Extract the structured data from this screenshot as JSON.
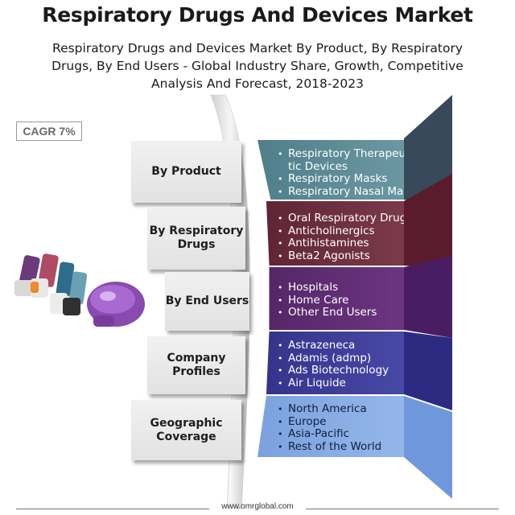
{
  "header": {
    "title": "Respiratory Drugs And Devices Market",
    "subtitle_lines": [
      "Respiratory Drugs and Devices Market By Product, By Respiratory",
      "Drugs, By End Users - Global Industry Share, Growth, Competitive",
      "Analysis And Forecast, 2018-2023"
    ]
  },
  "cagr_badge": "CAGR 7%",
  "segments": [
    {
      "label_lines": [
        "By Product"
      ],
      "color": "#5b8a96",
      "items": [
        "Respiratory Therapeu-",
        "tic Devices",
        "Respiratory Masks",
        "Respiratory Nasal Masks"
      ]
    },
    {
      "label_lines": [
        "By Respiratory",
        "Drugs"
      ],
      "color": "#6e2f3e",
      "items": [
        "Oral Respiratory Drugs",
        "Anticholinergics",
        "Antihistamines",
        "Beta2 Agonists"
      ]
    },
    {
      "label_lines": [
        "By End Users"
      ],
      "color": "#5d2c72",
      "items": [
        "Hospitals",
        "Home Care",
        "Other End Users"
      ]
    },
    {
      "label_lines": [
        "Company",
        "Profiles"
      ],
      "color": "#3b3a93",
      "items": [
        "Astrazeneca",
        "Adamis (admp)",
        "Ads Biotechnology",
        "Air Liquide"
      ]
    },
    {
      "label_lines": [
        "Geographic",
        "Coverage"
      ],
      "color": "#7ea7e2",
      "items": [
        "North America",
        "Europe",
        "Asia-Pacific",
        "Rest of the World"
      ]
    }
  ],
  "footer": {
    "website": "www.omrglobal.com"
  },
  "illustration": {
    "name": "inhaler-devices-image"
  }
}
